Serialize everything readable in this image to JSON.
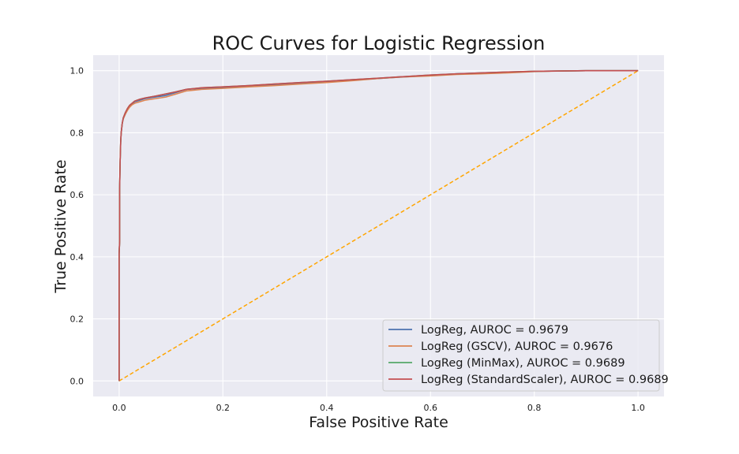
{
  "chart_data": {
    "type": "line",
    "title": "ROC Curves for Logistic Regression",
    "xlabel": "False Positive Rate",
    "ylabel": "True Positive Rate",
    "xlim": [
      -0.05,
      1.05
    ],
    "ylim": [
      -0.05,
      1.05
    ],
    "xticks": [
      0.0,
      0.2,
      0.4,
      0.6,
      0.8,
      1.0
    ],
    "yticks": [
      0.0,
      0.2,
      0.4,
      0.6,
      0.8,
      1.0
    ],
    "grid": true,
    "legend_position": "lower-right",
    "diagonal": {
      "x": [
        0,
        1
      ],
      "y": [
        0,
        1
      ],
      "color": "#ffa500",
      "style": "dashed"
    },
    "series": [
      {
        "name": "LogReg, AUROC = 0.9679",
        "color": "#4c72b0",
        "x": [
          0,
          0,
          0.001,
          0.001,
          0.002,
          0.003,
          0.004,
          0.006,
          0.008,
          0.012,
          0.016,
          0.02,
          0.025,
          0.03,
          0.04,
          0.05,
          0.07,
          0.09,
          0.11,
          0.13,
          0.16,
          0.2,
          0.25,
          0.3,
          0.35,
          0.4,
          0.45,
          0.5,
          0.55,
          0.6,
          0.65,
          0.7,
          0.75,
          0.8,
          0.85,
          0.9,
          1.0
        ],
        "y": [
          0,
          0.41,
          0.45,
          0.62,
          0.71,
          0.77,
          0.8,
          0.83,
          0.845,
          0.86,
          0.875,
          0.885,
          0.892,
          0.9,
          0.905,
          0.91,
          0.915,
          0.92,
          0.93,
          0.94,
          0.943,
          0.945,
          0.95,
          0.955,
          0.96,
          0.965,
          0.97,
          0.975,
          0.98,
          0.985,
          0.99,
          0.992,
          0.995,
          0.998,
          0.999,
          1.0,
          1.0
        ]
      },
      {
        "name": "LogReg (GSCV), AUROC = 0.9676",
        "color": "#dd8452",
        "x": [
          0,
          0,
          0.001,
          0.001,
          0.002,
          0.003,
          0.004,
          0.006,
          0.008,
          0.012,
          0.016,
          0.02,
          0.025,
          0.03,
          0.04,
          0.05,
          0.07,
          0.09,
          0.11,
          0.13,
          0.16,
          0.2,
          0.25,
          0.3,
          0.35,
          0.4,
          0.45,
          0.5,
          0.55,
          0.6,
          0.65,
          0.7,
          0.75,
          0.8,
          0.85,
          0.9,
          1.0
        ],
        "y": [
          0,
          0.41,
          0.45,
          0.62,
          0.71,
          0.77,
          0.8,
          0.83,
          0.845,
          0.86,
          0.872,
          0.882,
          0.89,
          0.895,
          0.9,
          0.905,
          0.91,
          0.915,
          0.925,
          0.935,
          0.94,
          0.943,
          0.948,
          0.952,
          0.957,
          0.962,
          0.968,
          0.975,
          0.98,
          0.983,
          0.988,
          0.99,
          0.993,
          0.997,
          0.999,
          1.0,
          1.0
        ]
      },
      {
        "name": "LogReg (MinMax), AUROC = 0.9689",
        "color": "#55a868",
        "x": [
          0,
          0,
          0.001,
          0.001,
          0.002,
          0.003,
          0.004,
          0.006,
          0.008,
          0.012,
          0.016,
          0.02,
          0.025,
          0.03,
          0.04,
          0.05,
          0.07,
          0.09,
          0.11,
          0.13,
          0.16,
          0.2,
          0.25,
          0.3,
          0.35,
          0.4,
          0.45,
          0.5,
          0.55,
          0.6,
          0.65,
          0.7,
          0.75,
          0.8,
          0.85,
          0.9,
          1.0
        ],
        "y": [
          0,
          0.41,
          0.45,
          0.62,
          0.71,
          0.77,
          0.8,
          0.83,
          0.848,
          0.865,
          0.878,
          0.888,
          0.895,
          0.902,
          0.908,
          0.912,
          0.918,
          0.925,
          0.932,
          0.94,
          0.945,
          0.948,
          0.952,
          0.957,
          0.962,
          0.966,
          0.971,
          0.976,
          0.981,
          0.986,
          0.99,
          0.993,
          0.996,
          0.998,
          0.999,
          1.0,
          1.0
        ]
      },
      {
        "name": "LogReg (StandardScaler), AUROC = 0.9689",
        "color": "#c44e52",
        "x": [
          0,
          0,
          0.001,
          0.001,
          0.002,
          0.003,
          0.004,
          0.006,
          0.008,
          0.012,
          0.016,
          0.02,
          0.025,
          0.03,
          0.04,
          0.05,
          0.07,
          0.09,
          0.11,
          0.13,
          0.16,
          0.2,
          0.25,
          0.3,
          0.35,
          0.4,
          0.45,
          0.5,
          0.55,
          0.6,
          0.65,
          0.7,
          0.75,
          0.8,
          0.85,
          0.9,
          1.0
        ],
        "y": [
          0,
          0.41,
          0.45,
          0.62,
          0.71,
          0.77,
          0.8,
          0.83,
          0.848,
          0.865,
          0.878,
          0.888,
          0.895,
          0.902,
          0.908,
          0.912,
          0.918,
          0.925,
          0.932,
          0.94,
          0.945,
          0.948,
          0.952,
          0.957,
          0.962,
          0.966,
          0.971,
          0.976,
          0.981,
          0.986,
          0.99,
          0.993,
          0.996,
          0.998,
          0.999,
          1.0,
          1.0
        ]
      }
    ]
  }
}
